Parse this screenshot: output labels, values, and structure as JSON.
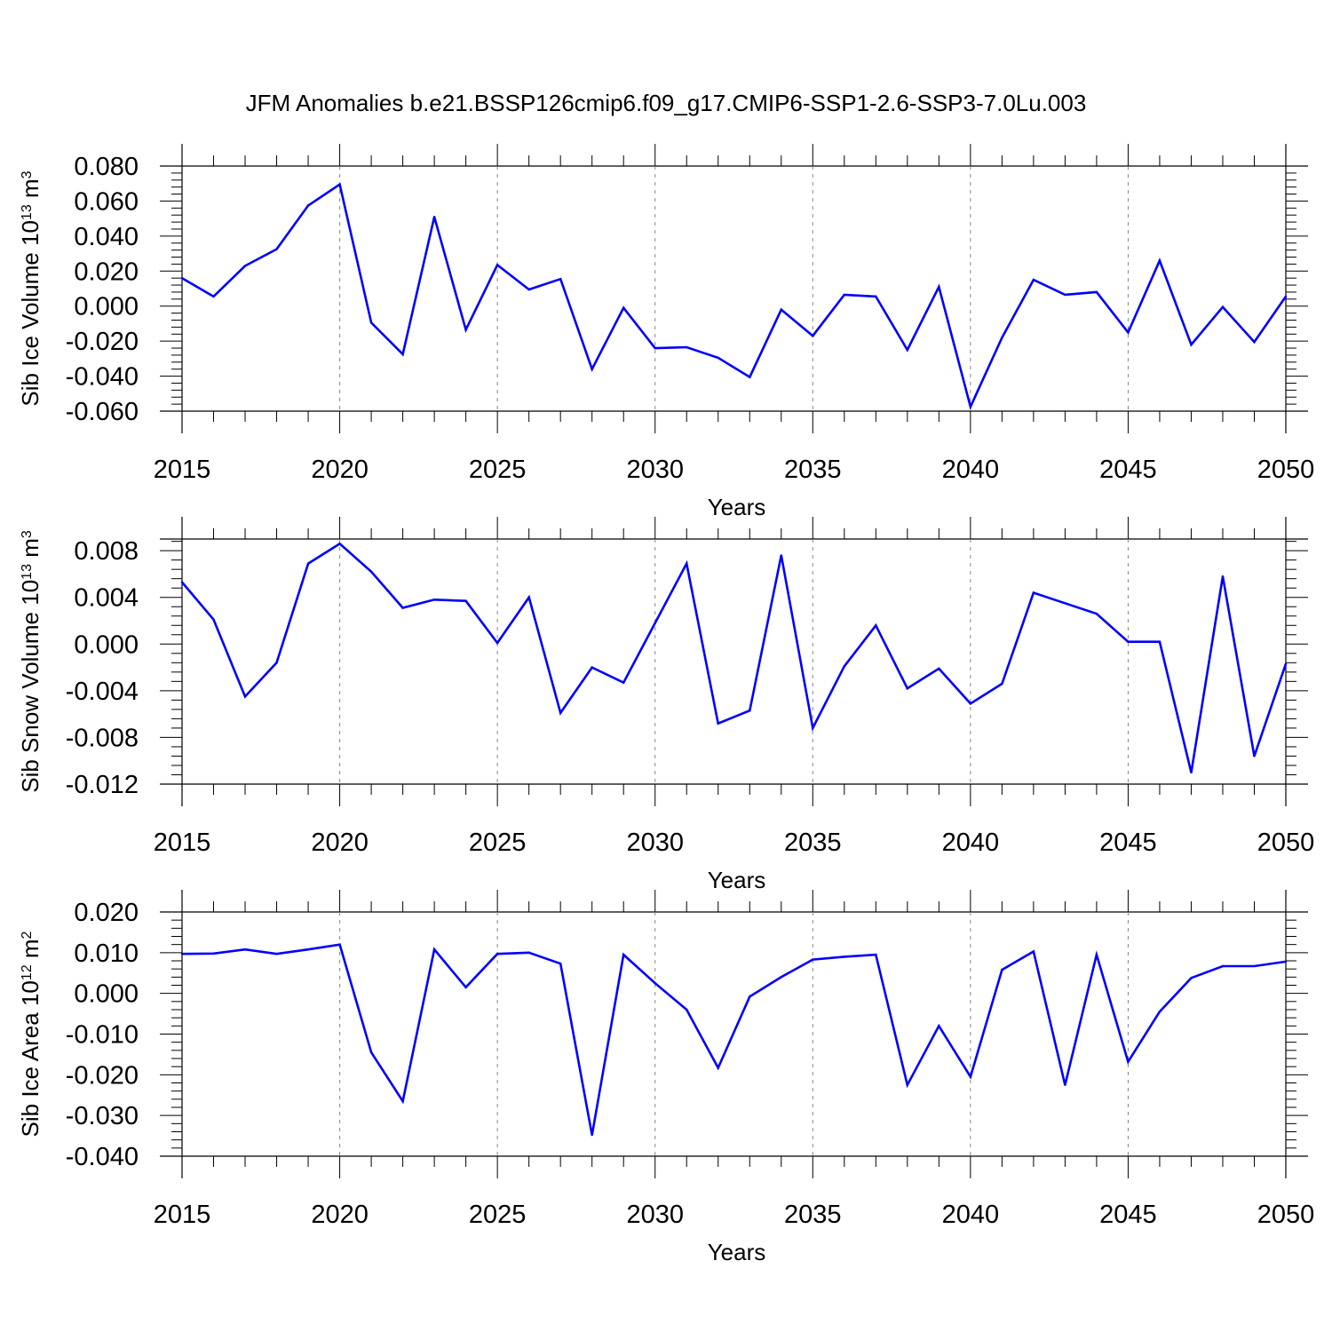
{
  "title": "JFM Anomalies b.e21.BSSP126cmip6.f09_g17.CMIP6-SSP1-2.6-SSP3-7.0Lu.003",
  "line_color": "#0000ff",
  "grid_color": "#888888",
  "chart_data": [
    {
      "type": "line",
      "xlabel": "Years",
      "ylabel": {
        "text": "Sib Ice Volume 10",
        "exponent": "13",
        "unit": " m",
        "unit_exponent": "3"
      },
      "xlim": [
        2015,
        2050
      ],
      "ylim": [
        -0.06,
        0.08
      ],
      "xticks": [
        2015,
        2020,
        2025,
        2030,
        2035,
        2040,
        2045,
        2050
      ],
      "yticks": [
        "0.080",
        "0.060",
        "0.040",
        "0.020",
        "0.000",
        "-0.020",
        "-0.040",
        "-0.060"
      ],
      "grid_x": true,
      "series": [
        {
          "x": [
            2015,
            2016,
            2017,
            2018,
            2019,
            2020,
            2021,
            2022,
            2023,
            2024,
            2025,
            2026,
            2027,
            2028,
            2029,
            2030,
            2031,
            2032,
            2033,
            2034,
            2035,
            2036,
            2037,
            2038,
            2039,
            2040,
            2041,
            2042,
            2043,
            2044,
            2045,
            2046,
            2047,
            2048,
            2049,
            2050
          ],
          "y": [
            0.016,
            0.0055,
            0.023,
            0.0325,
            0.0575,
            0.0695,
            -0.0095,
            -0.0275,
            0.051,
            -0.0135,
            0.0235,
            0.0095,
            0.0155,
            -0.036,
            -0.001,
            -0.024,
            -0.0235,
            -0.0295,
            -0.0405,
            -0.002,
            -0.017,
            0.0065,
            0.0055,
            -0.025,
            0.011,
            -0.0575,
            -0.018,
            0.015,
            0.0065,
            0.008,
            -0.015,
            0.026,
            -0.022,
            -0.0005,
            -0.0205,
            0.0055
          ]
        }
      ]
    },
    {
      "type": "line",
      "xlabel": "Years",
      "ylabel": {
        "text": "Sib Snow Volume 10",
        "exponent": "13",
        "unit": " m",
        "unit_exponent": "3"
      },
      "xlim": [
        2015,
        2050
      ],
      "ylim": [
        -0.012,
        0.009
      ],
      "xticks": [
        2015,
        2020,
        2025,
        2030,
        2035,
        2040,
        2045,
        2050
      ],
      "yticks": [
        "0.008",
        "0.004",
        "0.000",
        "-0.004",
        "-0.008",
        "-0.012"
      ],
      "grid_x": true,
      "series": [
        {
          "x": [
            2015,
            2016,
            2017,
            2018,
            2019,
            2020,
            2021,
            2022,
            2023,
            2024,
            2025,
            2026,
            2027,
            2028,
            2029,
            2030,
            2031,
            2032,
            2033,
            2034,
            2035,
            2036,
            2037,
            2038,
            2039,
            2040,
            2041,
            2042,
            2043,
            2044,
            2045,
            2046,
            2047,
            2048,
            2049,
            2050
          ],
          "y": [
            0.0053,
            0.0021,
            -0.0045,
            -0.0016,
            0.0069,
            0.0086,
            0.0062,
            0.0031,
            0.0038,
            0.0037,
            0.0001,
            0.004,
            -0.0059,
            -0.002,
            -0.0033,
            0.0018,
            0.0069,
            -0.0068,
            -0.0057,
            0.0076,
            -0.0072,
            -0.0019,
            0.0016,
            -0.0038,
            -0.0021,
            -0.0051,
            -0.0034,
            0.0044,
            0.0035,
            0.0026,
            0.0002,
            0.0002,
            -0.011,
            0.0058,
            -0.0096,
            -0.0017
          ]
        }
      ]
    },
    {
      "type": "line",
      "xlabel": "Years",
      "ylabel": {
        "text": "Sib Ice Area 10",
        "exponent": "12",
        "unit": " m",
        "unit_exponent": "2"
      },
      "xlim": [
        2015,
        2050
      ],
      "ylim": [
        -0.04,
        0.02
      ],
      "xticks": [
        2015,
        2020,
        2025,
        2030,
        2035,
        2040,
        2045,
        2050
      ],
      "yticks": [
        "0.020",
        "0.010",
        "0.000",
        "-0.010",
        "-0.020",
        "-0.030",
        "-0.040"
      ],
      "grid_x": true,
      "series": [
        {
          "x": [
            2015,
            2016,
            2017,
            2018,
            2019,
            2020,
            2021,
            2022,
            2023,
            2024,
            2025,
            2026,
            2027,
            2028,
            2029,
            2030,
            2031,
            2032,
            2033,
            2034,
            2035,
            2036,
            2037,
            2038,
            2039,
            2040,
            2041,
            2042,
            2043,
            2044,
            2045,
            2046,
            2047,
            2048,
            2049,
            2050
          ],
          "y": [
            0.0097,
            0.0098,
            0.0108,
            0.0097,
            0.0108,
            0.012,
            -0.0145,
            -0.0265,
            0.0108,
            0.0015,
            0.0097,
            0.01,
            0.0073,
            -0.0348,
            0.0095,
            0.0025,
            -0.004,
            -0.0183,
            -0.0008,
            0.004,
            0.0083,
            0.009,
            0.0095,
            -0.0225,
            -0.008,
            -0.0205,
            0.0058,
            0.0103,
            -0.0225,
            0.0095,
            -0.0168,
            -0.0045,
            0.0038,
            0.0067,
            0.0067,
            0.0078
          ]
        }
      ]
    }
  ]
}
